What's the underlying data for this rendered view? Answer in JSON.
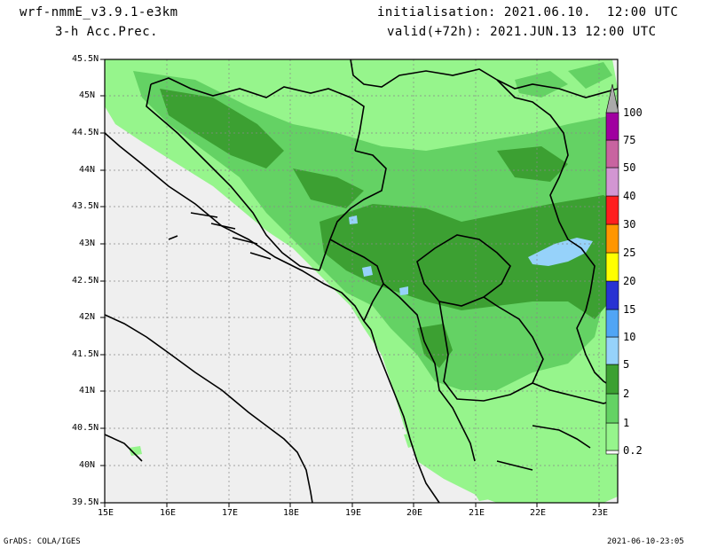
{
  "header": {
    "model": "wrf-nmmE_v3.9.1-e3km",
    "field": "3-h Acc.Prec.",
    "init": "initialisation: 2021.06.10.  12:00 UTC",
    "valid": "valid(+72h): 2021.JUN.13 12:00 UTC"
  },
  "axes": {
    "lat_labels": [
      "45.5N",
      "45N",
      "44.5N",
      "44N",
      "43.5N",
      "43N",
      "42.5N",
      "42N",
      "41.5N",
      "41N",
      "40.5N",
      "40N",
      "39.5N"
    ],
    "lon_labels": [
      "15E",
      "16E",
      "17E",
      "18E",
      "19E",
      "20E",
      "21E",
      "22E",
      "23E"
    ]
  },
  "colorbar": {
    "labels": [
      "0.2",
      "1",
      "2",
      "5",
      "10",
      "15",
      "20",
      "25",
      "30",
      "40",
      "50",
      "75",
      "100"
    ],
    "colors": [
      "#ffffff",
      "#96f58c",
      "#64d264",
      "#3ca032",
      "#96d2fa",
      "#50a5f5",
      "#2832d2",
      "#ffff00",
      "#ff9600",
      "#ff1e1e",
      "#d296d2",
      "#c864a0",
      "#a000a0",
      "#aaaaaa"
    ]
  },
  "map": {
    "ocean_color": "#efefef",
    "precip_colors": [
      "#96f58c",
      "#64d264",
      "#3ca032",
      "#96d2fa"
    ]
  },
  "footer": {
    "left": "GrADS: COLA/IGES",
    "right": "2021-06-10-23:05"
  }
}
